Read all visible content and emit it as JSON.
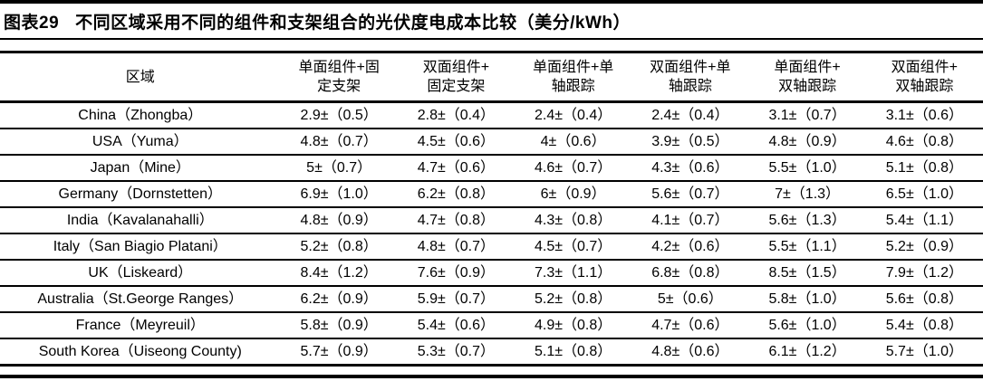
{
  "title": {
    "label": "图表29",
    "text": "不同区域采用不同的组件和支架组合的光伏度电成本比较（美分/kWh）"
  },
  "colors": {
    "accent_red": "#ff0000",
    "text": "#000000",
    "background": "#ffffff",
    "rule": "#000000"
  },
  "chart_data": {
    "type": "table",
    "title": "图表29 不同区域采用不同的组件和支架组合的光伏度电成本比较（美分/kWh）",
    "unit": "美分/kWh",
    "highlighted_column": "双面组件+单轴跟踪",
    "columns": [
      {
        "label": "区域",
        "highlight": false
      },
      {
        "label": "单面组件+固\n定支架",
        "highlight": false
      },
      {
        "label": "双面组件+\n固定支架",
        "highlight": false
      },
      {
        "label": "单面组件+单\n轴跟踪",
        "highlight": false
      },
      {
        "label": "双面组件+单\n轴跟踪",
        "highlight": true
      },
      {
        "label": "单面组件+\n双轴跟踪",
        "highlight": false
      },
      {
        "label": "双面组件+\n双轴跟踪",
        "highlight": false
      }
    ],
    "rows": [
      {
        "region": "China（Zhongba）",
        "values": [
          "2.9±（0.5）",
          "2.8±（0.4）",
          "2.4±（0.4）",
          "2.4±（0.4）",
          "3.1±（0.7）",
          "3.1±（0.6）"
        ]
      },
      {
        "region": "USA（Yuma）",
        "values": [
          "4.8±（0.7）",
          "4.5±（0.6）",
          "4±（0.6）",
          "3.9±（0.5）",
          "4.8±（0.9）",
          "4.6±（0.8）"
        ]
      },
      {
        "region": "Japan（Mine）",
        "values": [
          "5±（0.7）",
          "4.7±（0.6）",
          "4.6±（0.7）",
          "4.3±（0.6）",
          "5.5±（1.0）",
          "5.1±（0.8）"
        ]
      },
      {
        "region": "Germany（Dornstetten）",
        "values": [
          "6.9±（1.0）",
          "6.2±（0.8）",
          "6±（0.9）",
          "5.6±（0.7）",
          "7±（1.3）",
          "6.5±（1.0）"
        ]
      },
      {
        "region": "India（Kavalanahalli）",
        "values": [
          "4.8±（0.9）",
          "4.7±（0.8）",
          "4.3±（0.8）",
          "4.1±（0.7）",
          "5.6±（1.3）",
          "5.4±（1.1）"
        ]
      },
      {
        "region": "Italy（San Biagio Platani）",
        "values": [
          "5.2±（0.8）",
          "4.8±（0.7）",
          "4.5±（0.7）",
          "4.2±（0.6）",
          "5.5±（1.1）",
          "5.2±（0.9）"
        ]
      },
      {
        "region": "UK（Liskeard）",
        "values": [
          "8.4±（1.2）",
          "7.6±（0.9）",
          "7.3±（1.1）",
          "6.8±（0.8）",
          "8.5±（1.5）",
          "7.9±（1.2）"
        ]
      },
      {
        "region": "Australia（St.George Ranges）",
        "values": [
          "6.2±（0.9）",
          "5.9±（0.7）",
          "5.2±（0.8）",
          "5±（0.6）",
          "5.8±（1.0）",
          "5.6±（0.8）"
        ]
      },
      {
        "region": "France（Meyreuil）",
        "values": [
          "5.8±（0.9）",
          "5.4±（0.6）",
          "4.9±（0.8）",
          "4.7±（0.6）",
          "5.6±（1.0）",
          "5.4±（0.8）"
        ]
      },
      {
        "region": "South Korea（Uiseong County)",
        "values": [
          "5.7±（0.9）",
          "5.3±（0.7）",
          "5.1±（0.8）",
          "4.8±（0.6）",
          "6.1±（1.2）",
          "5.7±（1.0）"
        ]
      }
    ]
  }
}
